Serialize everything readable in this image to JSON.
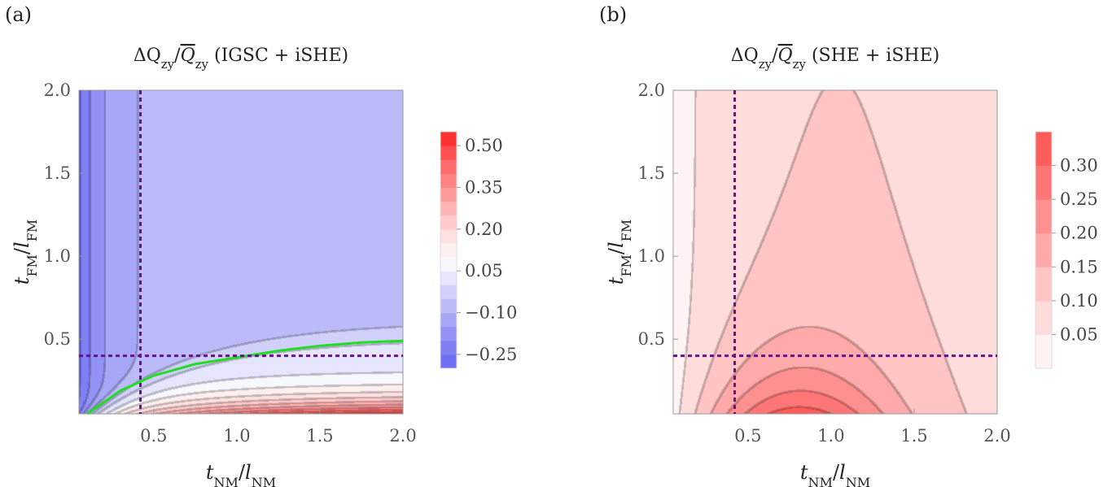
{
  "figure": {
    "panel_a_label": "(a)",
    "panel_b_label": "(b)"
  },
  "chart_data": [
    {
      "type": "heatmap",
      "panel": "(a)",
      "title": "ΔQzy/Q̄zy (IGSC + iSHE)",
      "xlabel": "tNM/lNM",
      "ylabel": "tFM/lFM",
      "xlim": [
        0.05,
        2.0
      ],
      "ylim": [
        0.05,
        2.0
      ],
      "xticks": [
        "0.5",
        "1.0",
        "1.5",
        "2.0"
      ],
      "yticks": [
        "0.5",
        "1.0",
        "1.5",
        "2.0"
      ],
      "colorbar": {
        "ticks": [
          "0.50",
          "0.35",
          "0.20",
          "0.05",
          "−0.10",
          "−0.25"
        ],
        "tick_values": [
          0.5,
          0.35,
          0.2,
          0.05,
          -0.1,
          -0.25
        ],
        "range": [
          -0.3,
          0.55
        ],
        "levels": [
          -0.3,
          -0.25,
          -0.2,
          -0.15,
          -0.1,
          -0.05,
          0,
          0.05,
          0.1,
          0.15,
          0.2,
          0.25,
          0.3,
          0.35,
          0.4,
          0.45,
          0.5,
          0.55
        ],
        "colors": [
          "#6f6ff4",
          "#8080f5",
          "#9393f7",
          "#a7a7f8",
          "#bbbbfa",
          "#d0d0fb",
          "#e5e5fd",
          "#f7f7fe",
          "#fff0f0",
          "#ffe0e0",
          "#ffcaca",
          "#ffb3b3",
          "#ff9b9b",
          "#ff8282",
          "#ff6a6a",
          "#ff5050",
          "#ff3030"
        ]
      },
      "markers": {
        "dashed_x": 0.42,
        "dashed_y": 0.4,
        "dashed_color": "#6a0f8e"
      },
      "zero_contour": {
        "color": "#22dd22",
        "x": [
          0.1,
          0.3,
          0.5,
          0.75,
          1.0,
          1.25,
          1.5,
          1.75,
          2.0
        ],
        "y": [
          0.05,
          0.19,
          0.28,
          0.35,
          0.39,
          0.43,
          0.46,
          0.48,
          0.49
        ]
      }
    },
    {
      "type": "heatmap",
      "panel": "(b)",
      "title": "ΔQzy/Q̄zy (SHE + iSHE)",
      "xlabel": "tNM/lNM",
      "ylabel": "tFM/lFM",
      "xlim": [
        0.05,
        2.0
      ],
      "ylim": [
        0.05,
        2.0
      ],
      "xticks": [
        "0.5",
        "1.0",
        "1.5",
        "2.0"
      ],
      "yticks": [
        "0.5",
        "1.0",
        "1.5",
        "2.0"
      ],
      "colorbar": {
        "ticks": [
          "0.30",
          "0.25",
          "0.20",
          "0.15",
          "0.10",
          "0.05"
        ],
        "tick_values": [
          0.3,
          0.25,
          0.2,
          0.15,
          0.1,
          0.05
        ],
        "range": [
          0.0,
          0.35
        ],
        "levels": [
          0,
          0.05,
          0.1,
          0.15,
          0.2,
          0.25,
          0.3,
          0.35
        ],
        "colors": [
          "#fff3f3",
          "#ffdcdc",
          "#ffc4c4",
          "#ffaaaa",
          "#ff9090",
          "#ff7676",
          "#ff5c5c"
        ]
      },
      "markers": {
        "dashed_x": 0.42,
        "dashed_y": 0.4,
        "dashed_color": "#6a0f8e"
      }
    }
  ]
}
